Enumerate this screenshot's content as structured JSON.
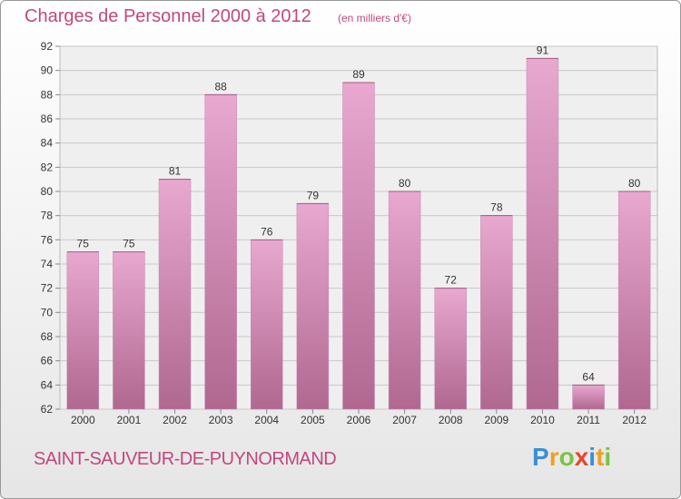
{
  "chart_data": {
    "type": "bar",
    "title": "Charges de Personnel 2000 à 2012",
    "subtitle": "(en milliers d'€)",
    "categories": [
      "2000",
      "2001",
      "2002",
      "2003",
      "2004",
      "2005",
      "2006",
      "2007",
      "2008",
      "2009",
      "2010",
      "2011",
      "2012"
    ],
    "values": [
      75,
      75,
      81,
      88,
      76,
      79,
      89,
      80,
      72,
      78,
      91,
      64,
      80
    ],
    "ylim": [
      62,
      92
    ],
    "yticks": [
      62,
      64,
      66,
      68,
      70,
      72,
      74,
      76,
      78,
      80,
      82,
      84,
      86,
      88,
      90,
      92
    ],
    "grid": true,
    "bar_color_top": "#e8a8d0",
    "bar_color_bottom": "#b06890"
  },
  "footer": {
    "city": "SAINT-SAUVEUR-DE-PUYNORMAND",
    "logo_letters": [
      "P",
      "r",
      "o",
      "x",
      "i",
      "t",
      "i"
    ],
    "logo_colors": [
      "#3a8fd6",
      "#f0a020",
      "#7cc243",
      "#e8452a",
      "#3a8fd6",
      "#f0a020",
      "#7cc243"
    ]
  }
}
